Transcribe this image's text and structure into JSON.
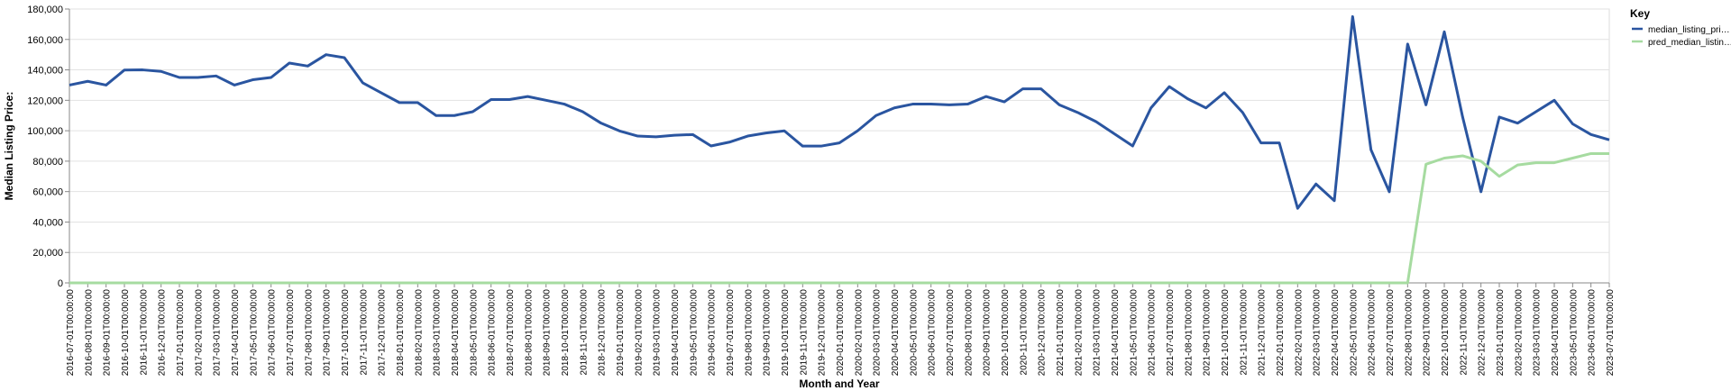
{
  "chart_data": {
    "type": "line",
    "x_label": "Month and Year",
    "y_label": "Median Listing Price:",
    "legend_title": "Key",
    "legend_position": "top-right",
    "grid": true,
    "categories": [
      "2016-07-01T00:00:00",
      "2016-08-01T00:00:00",
      "2016-09-01T00:00:00",
      "2016-10-01T00:00:00",
      "2016-11-01T00:00:00",
      "2016-12-01T00:00:00",
      "2017-01-01T00:00:00",
      "2017-02-01T00:00:00",
      "2017-03-01T00:00:00",
      "2017-04-01T00:00:00",
      "2017-05-01T00:00:00",
      "2017-06-01T00:00:00",
      "2017-07-01T00:00:00",
      "2017-08-01T00:00:00",
      "2017-09-01T00:00:00",
      "2017-10-01T00:00:00",
      "2017-11-01T00:00:00",
      "2017-12-01T00:00:00",
      "2018-01-01T00:00:00",
      "2018-02-01T00:00:00",
      "2018-03-01T00:00:00",
      "2018-04-01T00:00:00",
      "2018-05-01T00:00:00",
      "2018-06-01T00:00:00",
      "2018-07-01T00:00:00",
      "2018-08-01T00:00:00",
      "2018-09-01T00:00:00",
      "2018-10-01T00:00:00",
      "2018-11-01T00:00:00",
      "2018-12-01T00:00:00",
      "2019-01-01T00:00:00",
      "2019-02-01T00:00:00",
      "2019-03-01T00:00:00",
      "2019-04-01T00:00:00",
      "2019-05-01T00:00:00",
      "2019-06-01T00:00:00",
      "2019-07-01T00:00:00",
      "2019-08-01T00:00:00",
      "2019-09-01T00:00:00",
      "2019-10-01T00:00:00",
      "2019-11-01T00:00:00",
      "2019-12-01T00:00:00",
      "2020-01-01T00:00:00",
      "2020-02-01T00:00:00",
      "2020-03-01T00:00:00",
      "2020-04-01T00:00:00",
      "2020-05-01T00:00:00",
      "2020-06-01T00:00:00",
      "2020-07-01T00:00:00",
      "2020-08-01T00:00:00",
      "2020-09-01T00:00:00",
      "2020-10-01T00:00:00",
      "2020-11-01T00:00:00",
      "2020-12-01T00:00:00",
      "2021-01-01T00:00:00",
      "2021-02-01T00:00:00",
      "2021-03-01T00:00:00",
      "2021-04-01T00:00:00",
      "2021-05-01T00:00:00",
      "2021-06-01T00:00:00",
      "2021-07-01T00:00:00",
      "2021-08-01T00:00:00",
      "2021-09-01T00:00:00",
      "2021-10-01T00:00:00",
      "2021-11-01T00:00:00",
      "2021-12-01T00:00:00",
      "2022-01-01T00:00:00",
      "2022-02-01T00:00:00",
      "2022-03-01T00:00:00",
      "2022-04-01T00:00:00",
      "2022-05-01T00:00:00",
      "2022-06-01T00:00:00",
      "2022-07-01T00:00:00",
      "2022-08-01T00:00:00",
      "2022-09-01T00:00:00",
      "2022-10-01T00:00:00",
      "2022-11-01T00:00:00",
      "2022-12-01T00:00:00",
      "2023-01-01T00:00:00",
      "2023-02-01T00:00:00",
      "2023-03-01T00:00:00",
      "2023-04-01T00:00:00",
      "2023-05-01T00:00:00",
      "2023-06-01T00:00:00",
      "2023-07-01T00:00:00"
    ],
    "series": [
      {
        "name": "median_listing_pri…",
        "color": "#2a55a0",
        "values": [
          130000,
          132500,
          130000,
          139900,
          140000,
          139000,
          135000,
          135000,
          136000,
          130000,
          133500,
          135000,
          144500,
          142500,
          150000,
          148000,
          131500,
          125000,
          118500,
          118500,
          110000,
          110000,
          112500,
          120500,
          120500,
          122500,
          120000,
          117500,
          112500,
          105000,
          99900,
          96500,
          96000,
          97000,
          97500,
          90000,
          92500,
          96500,
          98500,
          99900,
          89900,
          89900,
          92000,
          100000,
          110000,
          115000,
          117500,
          117500,
          117000,
          117500,
          122500,
          119000,
          127500,
          127500,
          117000,
          112000,
          106000,
          98000,
          90000,
          115000,
          129000,
          121000,
          115000,
          125000,
          112000,
          92000,
          92000,
          49000,
          65000,
          54000,
          175000,
          87500,
          59900,
          157000,
          117000,
          165000,
          109000,
          59900,
          109000,
          105000,
          112500,
          120000,
          104500,
          97500,
          94000
        ]
      },
      {
        "name": "pred_median_listin…",
        "color": "#a6dba0",
        "values": [
          0,
          0,
          0,
          0,
          0,
          0,
          0,
          0,
          0,
          0,
          0,
          0,
          0,
          0,
          0,
          0,
          0,
          0,
          0,
          0,
          0,
          0,
          0,
          0,
          0,
          0,
          0,
          0,
          0,
          0,
          0,
          0,
          0,
          0,
          0,
          0,
          0,
          0,
          0,
          0,
          0,
          0,
          0,
          0,
          0,
          0,
          0,
          0,
          0,
          0,
          0,
          0,
          0,
          0,
          0,
          0,
          0,
          0,
          0,
          0,
          0,
          0,
          0,
          0,
          0,
          0,
          0,
          0,
          0,
          0,
          0,
          0,
          0,
          0,
          78000,
          82000,
          83500,
          80000,
          70000,
          77500,
          79000,
          79000,
          82000,
          85000,
          85000
        ]
      }
    ],
    "ylim": [
      0,
      180000
    ],
    "yticks": [
      0,
      {
        "value": 20000,
        "label": "20,000"
      },
      {
        "value": 40000,
        "label": "40,000"
      },
      {
        "value": 60000,
        "label": "60,000"
      },
      {
        "value": 80000,
        "label": "80,000"
      },
      {
        "value": 100000,
        "label": "100,000"
      },
      {
        "value": 120000,
        "label": "120,000"
      },
      {
        "value": 140000,
        "label": "140,000"
      },
      {
        "value": 160000,
        "label": "160,000"
      },
      {
        "value": 180000,
        "label": "180,000"
      }
    ]
  }
}
